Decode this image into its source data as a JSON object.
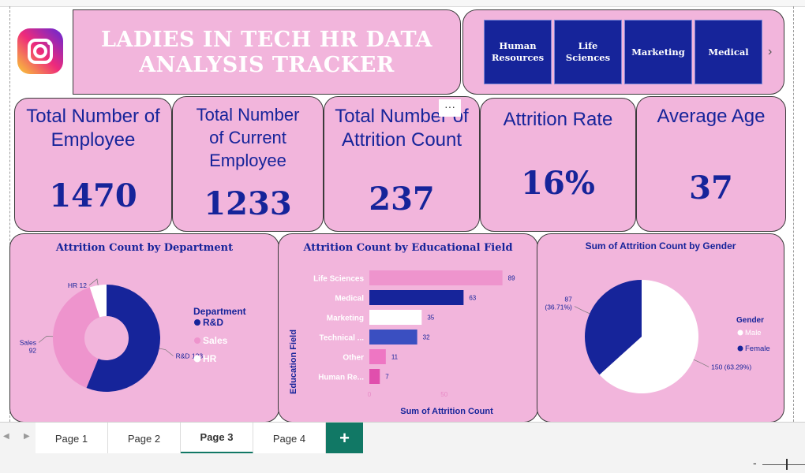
{
  "title": "LADIES IN TECH HR DATA ANALYSIS TRACKER",
  "slicer": {
    "items": [
      "Human Resources",
      "Life Sciences",
      "Marketing",
      "Medical"
    ],
    "next_icon": "chevron-right-icon"
  },
  "kpis": [
    {
      "label": "Total Number of Employee",
      "value": "1470"
    },
    {
      "label": "Total Number of Current Employee",
      "value": "1233"
    },
    {
      "label": "Total Number of Attrition Count",
      "value": "237"
    },
    {
      "label": "Attrition Rate",
      "value": "16%"
    },
    {
      "label": "Average Age",
      "value": "37"
    }
  ],
  "more_options": "···",
  "chart_data": [
    {
      "type": "pie",
      "title": "Attrition Count by Department",
      "legend_title": "Department",
      "legend_position": "right",
      "categories": [
        "R&D",
        "Sales",
        "HR"
      ],
      "values": [
        133,
        92,
        12
      ],
      "data_labels": [
        "R&D 133",
        "Sales\n92",
        "HR 12"
      ],
      "colors": [
        "#16249a",
        "#ee94cd",
        "#ffffff"
      ]
    },
    {
      "type": "bar",
      "title": "Attrition Count by Educational Field",
      "xlabel": "Sum of Attrition Count",
      "ylabel": "Education Field",
      "categories": [
        "Life Sciences",
        "Medical",
        "Marketing",
        "Technical ...",
        "Other",
        "Human Re..."
      ],
      "values": [
        89,
        63,
        35,
        32,
        11,
        7
      ],
      "colors": [
        "#ee94cd",
        "#16249a",
        "#ffffff",
        "#3a4fc1",
        "#ee76c3",
        "#e04fad"
      ],
      "x_ticks": [
        "0",
        "50"
      ],
      "xlim": [
        0,
        95
      ]
    },
    {
      "type": "pie",
      "title": "Sum of Attrition Count by Gender",
      "legend_title": "Gender",
      "legend_position": "right",
      "categories": [
        "Male",
        "Female"
      ],
      "values": [
        150,
        87
      ],
      "data_labels": [
        "150 (63.29%)",
        "87\n(36.71%)"
      ],
      "colors": [
        "#ffffff",
        "#16249a"
      ]
    }
  ],
  "tabs": [
    "Page 1",
    "Page 2",
    "Page 3",
    "Page 4"
  ],
  "active_tab": "Page 3",
  "add_tab": "+",
  "zoom_minus": "-"
}
